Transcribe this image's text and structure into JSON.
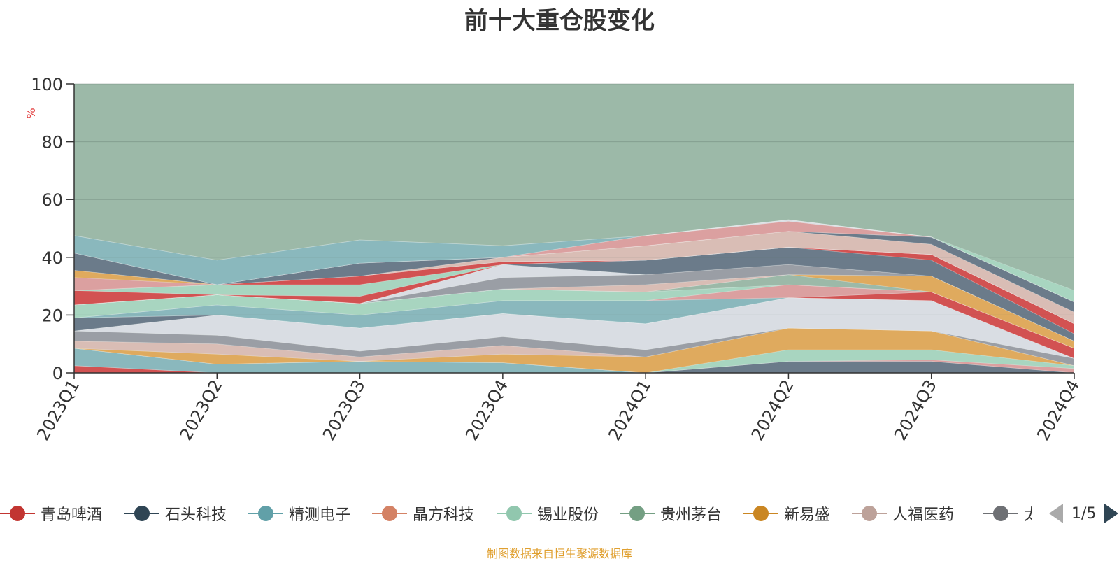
{
  "chart_data": {
    "type": "area",
    "title": "前十大重仓股变化",
    "ylabel": "%",
    "ylim": [
      0,
      100
    ],
    "yticks": [
      0,
      20,
      40,
      60,
      80,
      100
    ],
    "grid": true,
    "legend_position": "bottom",
    "categories": [
      "2023Q1",
      "2023Q2",
      "2023Q3",
      "2023Q4",
      "2024Q1",
      "2024Q2",
      "2024Q3",
      "2024Q4"
    ],
    "background_series_color": "#9cb9a8",
    "series": [
      {
        "color": "#d25252",
        "values": [
          2.5,
          0,
          0,
          0,
          0,
          0,
          0,
          0
        ]
      },
      {
        "color": "#6b7b8a",
        "values": [
          0,
          0,
          0,
          0,
          0,
          4,
          4,
          0
        ]
      },
      {
        "color": "#8ab8bd",
        "values": [
          6,
          3,
          4,
          3.5,
          0,
          0,
          0,
          0
        ]
      },
      {
        "color": "#dba0a0",
        "values": [
          0,
          0,
          0,
          0,
          0,
          0,
          0.5,
          1.5
        ]
      },
      {
        "color": "#a8d5c0",
        "values": [
          0,
          0,
          0,
          0,
          0,
          4,
          3.5,
          1
        ]
      },
      {
        "color": "#dfaa5e",
        "values": [
          0,
          3.5,
          0,
          3,
          5.5,
          7.5,
          6.5,
          0
        ]
      },
      {
        "color": "#d9bdb5",
        "values": [
          2.5,
          3.5,
          1.5,
          3,
          0,
          0,
          0,
          0
        ]
      },
      {
        "color": "#9a9ea5",
        "values": [
          3.5,
          3,
          2,
          3,
          2.5,
          0,
          0,
          2.5
        ]
      },
      {
        "color": "#d9dde3",
        "values": [
          0,
          7,
          8,
          8,
          9,
          10.5,
          10.5,
          0
        ]
      },
      {
        "color": "#6b7b8a",
        "values": [
          4.5,
          0,
          0,
          0,
          0,
          0,
          0,
          0
        ]
      },
      {
        "color": "#d25252",
        "values": [
          0,
          0,
          0,
          0,
          0,
          0,
          3,
          3.5
        ]
      },
      {
        "color": "#8ab8bd",
        "values": [
          0,
          3.5,
          4.5,
          4.5,
          8,
          0,
          0,
          0
        ]
      },
      {
        "color": "#dba0a0",
        "values": [
          0,
          0,
          0,
          0,
          0,
          4.5,
          0,
          0
        ]
      },
      {
        "color": "#a8d5c0",
        "values": [
          4.5,
          3.5,
          4,
          4,
          3,
          0,
          0,
          0
        ]
      },
      {
        "color": "#9cb9a8",
        "values": [
          0,
          0,
          0,
          0,
          0,
          3.5,
          0,
          0
        ]
      },
      {
        "color": "#dfaa5e",
        "values": [
          0,
          0,
          0,
          0,
          0,
          0,
          5.5,
          2.5
        ]
      },
      {
        "color": "#d9bdb5",
        "values": [
          0,
          0,
          0,
          0,
          2.5,
          0,
          0,
          0
        ]
      },
      {
        "color": "#9a9ea5",
        "values": [
          0,
          0,
          0,
          4,
          3.5,
          3.5,
          0,
          0
        ]
      },
      {
        "color": "#d9dde3",
        "values": [
          0,
          0,
          0,
          4.5,
          0,
          0,
          0,
          0
        ]
      },
      {
        "color": "#6b7b8a",
        "values": [
          0,
          0,
          0,
          0,
          5,
          6,
          5.5,
          2.5
        ]
      },
      {
        "color": "#d25252",
        "values": [
          5,
          0,
          2.5,
          0,
          0,
          0,
          2,
          3.5
        ]
      },
      {
        "color": "#a8d5c0",
        "values": [
          0,
          3.5,
          4,
          0,
          0,
          0,
          0,
          0
        ]
      },
      {
        "color": "#d25252",
        "values": [
          0,
          0,
          3,
          1,
          0,
          0,
          0,
          0
        ]
      },
      {
        "color": "#dba0a0",
        "values": [
          4.5,
          0,
          0,
          0,
          0,
          0,
          0,
          0
        ]
      },
      {
        "color": "#dfaa5e",
        "values": [
          2.5,
          0,
          0,
          0,
          0,
          0,
          0,
          0
        ]
      },
      {
        "color": "#d9bdb5",
        "values": [
          0,
          0,
          0,
          1.5,
          5,
          5.5,
          3.5,
          4
        ]
      },
      {
        "color": "#6b7b8a",
        "values": [
          6,
          0,
          4.5,
          0,
          0,
          0,
          2.5,
          3.5
        ]
      },
      {
        "color": "#9cb9a8",
        "values": [
          0,
          0,
          0,
          0,
          0,
          0,
          0,
          0
        ]
      },
      {
        "color": "#dba0a0",
        "values": [
          0,
          0,
          0,
          0,
          3.5,
          3.5,
          0,
          0
        ]
      },
      {
        "color": "#d9dde3",
        "values": [
          0,
          0,
          0,
          0,
          0,
          0.5,
          0,
          0
        ]
      },
      {
        "color": "#8ab8bd",
        "values": [
          6,
          8.5,
          8,
          4,
          0,
          0,
          0,
          0
        ]
      },
      {
        "color": "#a8d5c0",
        "values": [
          0,
          0,
          0,
          0,
          0,
          0,
          0,
          4
        ]
      }
    ]
  },
  "legend": {
    "items": [
      {
        "label": "青岛啤酒",
        "color": "#c23531"
      },
      {
        "label": "石头科技",
        "color": "#2f4554"
      },
      {
        "label": "精测电子",
        "color": "#61a0a8"
      },
      {
        "label": "晶方科技",
        "color": "#d48265"
      },
      {
        "label": "锡业股份",
        "color": "#91c7ae"
      },
      {
        "label": "贵州茅台",
        "color": "#749f83"
      },
      {
        "label": "新易盛",
        "color": "#ca8622"
      },
      {
        "label": "人福医药",
        "color": "#bda29a"
      },
      {
        "label": "太",
        "color": "#6e7074"
      }
    ],
    "page_text": "1/5"
  },
  "footnote": "制图数据来自恒生聚源数据库"
}
